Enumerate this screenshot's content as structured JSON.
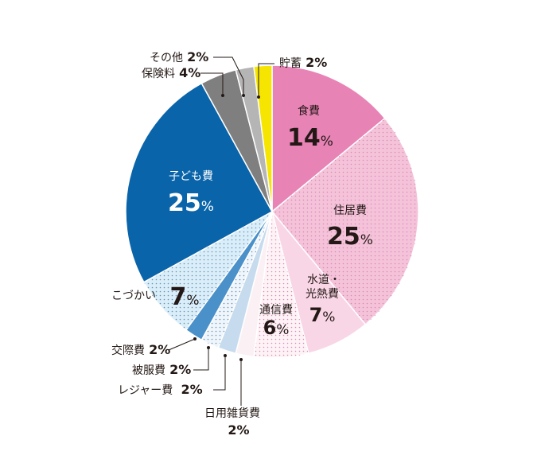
{
  "chart_data": {
    "type": "pie",
    "start": "top",
    "direction": "clockwise",
    "unit": "%",
    "slices": [
      {
        "label": "食費",
        "value": 14,
        "color": "#e883b6",
        "pattern": "solid"
      },
      {
        "label": "住居費",
        "value": 25,
        "color": "#f4c3da",
        "pattern": "dots"
      },
      {
        "label": "水道・光熱費",
        "value": 7,
        "color": "#f9d6e6",
        "pattern": "solid"
      },
      {
        "label": "通信費",
        "value": 6,
        "color": "#fdf3f7",
        "pattern": "dots"
      },
      {
        "label": "日用雑貨費",
        "value": 2,
        "color": "#fbf1f5",
        "pattern": "solid"
      },
      {
        "label": "レジャー費",
        "value": 2,
        "color": "#c6dbee",
        "pattern": "solid"
      },
      {
        "label": "被服費",
        "value": 2,
        "color": "#eef5fb",
        "pattern": "dots"
      },
      {
        "label": "交際費",
        "value": 2,
        "color": "#4a90c9",
        "pattern": "solid"
      },
      {
        "label": "こづかい",
        "value": 7,
        "color": "#d9eef9",
        "pattern": "dots"
      },
      {
        "label": "子ども費",
        "value": 25,
        "color": "#0a64a9",
        "pattern": "solid"
      },
      {
        "label": "保険料",
        "value": 4,
        "color": "#7f7f7f",
        "pattern": "solid"
      },
      {
        "label": "その他",
        "value": 2,
        "color": "#b5b5b5",
        "pattern": "solid"
      },
      {
        "label": "貯蓄",
        "value": 2,
        "color": "#f6e500",
        "pattern": "solid"
      }
    ],
    "text": {
      "food": {
        "name": "食費",
        "pct": "14"
      },
      "housing": {
        "name": "住居費",
        "pct": "25"
      },
      "utilities": {
        "name1": "水道・",
        "name2": "光熱費",
        "pct": "7"
      },
      "telecom": {
        "name": "通信費",
        "pct": "6"
      },
      "daily": {
        "name": "日用雑貨費",
        "pct": "2%"
      },
      "leisure": {
        "name": "レジャー費",
        "pct": "2%"
      },
      "clothing": {
        "name": "被服費",
        "pct": "2%"
      },
      "social": {
        "name": "交際費",
        "pct": "2%"
      },
      "allowance": {
        "name": "こづかい",
        "pct": "7"
      },
      "children": {
        "name": "子ども費",
        "pct": "25"
      },
      "insurance": {
        "name": "保険料",
        "pct": "4%"
      },
      "other": {
        "name": "その他",
        "pct": "2%"
      },
      "savings": {
        "name": "貯蓄",
        "pct": "2%"
      },
      "percent_sign": "%"
    }
  }
}
